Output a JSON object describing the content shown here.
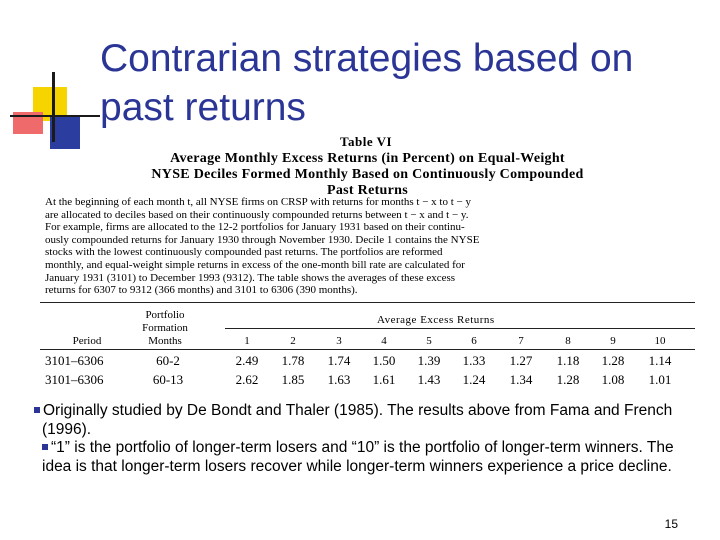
{
  "slide": {
    "title_line1": "Contrarian strategies based on",
    "title_line2": "past returns",
    "page_number": "15"
  },
  "table": {
    "label": "Table VI",
    "heading_line1": "Average Monthly Excess Returns (in Percent) on Equal-Weight",
    "heading_line2": "NYSE Deciles Formed Monthly Based on Continuously Compounded",
    "heading_line3": "Past Returns",
    "caption_lines": [
      "At the beginning of each month t, all NYSE firms on CRSP with returns for months t − x to t − y",
      "are allocated to deciles based on their continuously compounded returns between t − x and t − y.",
      "For example, firms are allocated to the 12-2 portfolios for January 1931 based on their continu-",
      "ously compounded returns for January 1930 through November 1930. Decile 1 contains the NYSE",
      "stocks with the lowest continuously compounded past returns. The portfolios are reformed",
      "monthly, and equal-weight simple returns in excess of the one-month bill rate are calculated for",
      "January 1931 (3101) to December 1993 (9312). The table shows the averages of these excess",
      "returns for 6307 to 9312 (366 months) and 3101 to 6306 (390 months)."
    ],
    "header_period": "Period",
    "header_portfolio_line1": "Portfolio",
    "header_portfolio_line2": "Formation",
    "header_portfolio_line3": "Months",
    "header_avg": "Average Excess Returns",
    "deciles": [
      "1",
      "2",
      "3",
      "4",
      "5",
      "6",
      "7",
      "8",
      "9",
      "10"
    ],
    "rows": [
      {
        "period": "3101–6306",
        "months": "60-2",
        "values": [
          "2.49",
          "1.78",
          "1.74",
          "1.50",
          "1.39",
          "1.33",
          "1.27",
          "1.18",
          "1.28",
          "1.14"
        ]
      },
      {
        "period": "3101–6306",
        "months": "60-13",
        "values": [
          "2.62",
          "1.85",
          "1.63",
          "1.61",
          "1.43",
          "1.24",
          "1.34",
          "1.28",
          "1.08",
          "1.01"
        ]
      }
    ]
  },
  "notes": {
    "bullet1": "Originally studied by De Bondt and Thaler (1985). The results above  from Fama and French (1996).",
    "bullet2": "“1” is the portfolio of longer-term losers and “10” is the portfolio of longer-term winners. The idea is that longer-term losers recover while longer-term winners experience a price decline."
  }
}
